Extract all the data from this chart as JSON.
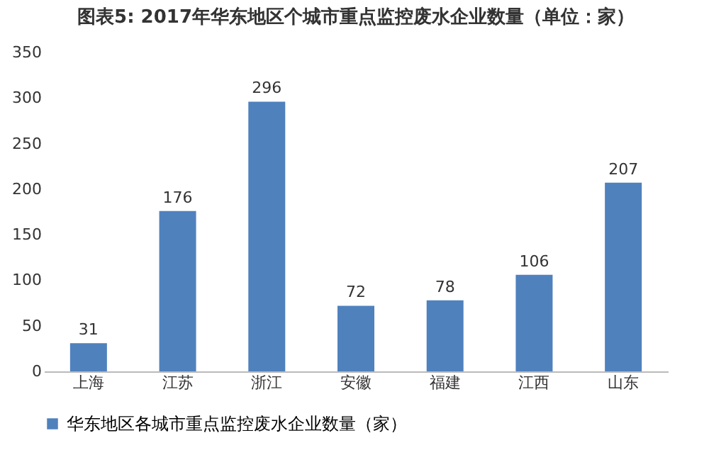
{
  "chart_data": {
    "type": "bar",
    "title": "图表5: 2017年华东地区个城市重点监控废水企业数量（单位：家）",
    "categories": [
      "上海",
      "江苏",
      "浙江",
      "安徽",
      "福建",
      "江西",
      "山东"
    ],
    "series": [
      {
        "name": "华东地区各城市重点监控废水企业数量（家）",
        "color": "#4f81bd",
        "values": [
          31,
          176,
          296,
          72,
          78,
          106,
          207
        ]
      }
    ],
    "ylim": [
      0,
      350
    ],
    "yticks": [
      0,
      50,
      100,
      150,
      200,
      250,
      300,
      350
    ],
    "data_labels": true,
    "grid": false,
    "legend": "bottom"
  }
}
